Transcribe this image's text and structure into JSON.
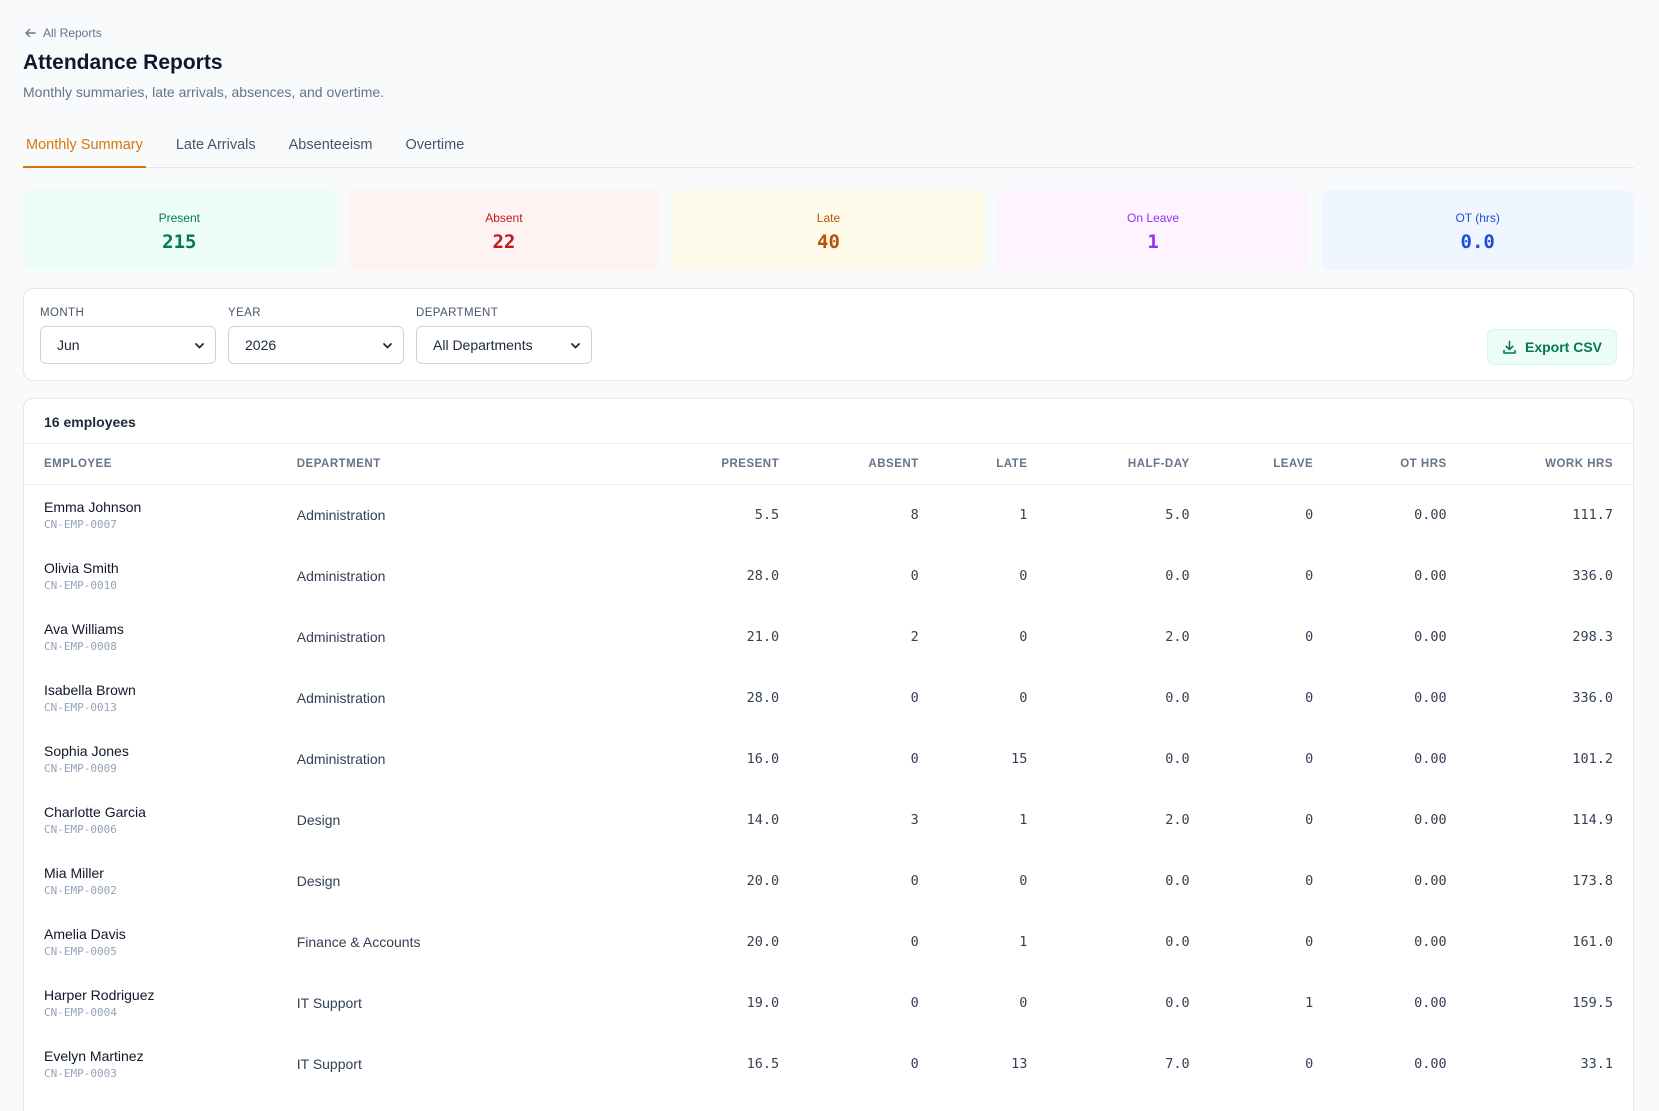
{
  "header": {
    "back_label": "All Reports",
    "title": "Attendance Reports",
    "subtitle": "Monthly summaries, late arrivals, absences, and overtime."
  },
  "tabs": [
    {
      "label": "Monthly Summary",
      "active": true
    },
    {
      "label": "Late Arrivals",
      "active": false
    },
    {
      "label": "Absenteeism",
      "active": false
    },
    {
      "label": "Overtime",
      "active": false
    }
  ],
  "stats": [
    {
      "label": "Present",
      "value": "215",
      "color": "#047857",
      "bg": "#ecfdf5"
    },
    {
      "label": "Absent",
      "value": "22",
      "color": "#b91c1c",
      "bg": "#fef2f2"
    },
    {
      "label": "Late",
      "value": "40",
      "color": "#b45309",
      "bg": "#fffbeb"
    },
    {
      "label": "On Leave",
      "value": "1",
      "color": "#9333ea",
      "bg": "#fdf4ff"
    },
    {
      "label": "OT (hrs)",
      "value": "0.0",
      "color": "#1d4ed8",
      "bg": "#eff6ff"
    }
  ],
  "filters": {
    "month": {
      "label": "Month",
      "value": "Jun"
    },
    "year": {
      "label": "Year",
      "value": "2026"
    },
    "department": {
      "label": "Department",
      "value": "All Departments"
    },
    "export_label": "Export CSV"
  },
  "table": {
    "count_label": "16 employees",
    "columns": [
      "Employee",
      "Department",
      "Present",
      "Absent",
      "Late",
      "Half-Day",
      "Leave",
      "OT Hrs",
      "Work Hrs"
    ],
    "rows": [
      {
        "name": "Emma Johnson",
        "code": "CN-EMP-0007",
        "dept": "Administration",
        "present": "5.5",
        "absent": "8",
        "late": "1",
        "half": "5.0",
        "leave": "0",
        "ot": "0.00",
        "work": "111.7"
      },
      {
        "name": "Olivia Smith",
        "code": "CN-EMP-0010",
        "dept": "Administration",
        "present": "28.0",
        "absent": "0",
        "late": "0",
        "half": "0.0",
        "leave": "0",
        "ot": "0.00",
        "work": "336.0"
      },
      {
        "name": "Ava Williams",
        "code": "CN-EMP-0008",
        "dept": "Administration",
        "present": "21.0",
        "absent": "2",
        "late": "0",
        "half": "2.0",
        "leave": "0",
        "ot": "0.00",
        "work": "298.3"
      },
      {
        "name": "Isabella Brown",
        "code": "CN-EMP-0013",
        "dept": "Administration",
        "present": "28.0",
        "absent": "0",
        "late": "0",
        "half": "0.0",
        "leave": "0",
        "ot": "0.00",
        "work": "336.0"
      },
      {
        "name": "Sophia Jones",
        "code": "CN-EMP-0009",
        "dept": "Administration",
        "present": "16.0",
        "absent": "0",
        "late": "15",
        "half": "0.0",
        "leave": "0",
        "ot": "0.00",
        "work": "101.2"
      },
      {
        "name": "Charlotte Garcia",
        "code": "CN-EMP-0006",
        "dept": "Design",
        "present": "14.0",
        "absent": "3",
        "late": "1",
        "half": "2.0",
        "leave": "0",
        "ot": "0.00",
        "work": "114.9"
      },
      {
        "name": "Mia Miller",
        "code": "CN-EMP-0002",
        "dept": "Design",
        "present": "20.0",
        "absent": "0",
        "late": "0",
        "half": "0.0",
        "leave": "0",
        "ot": "0.00",
        "work": "173.8"
      },
      {
        "name": "Amelia Davis",
        "code": "CN-EMP-0005",
        "dept": "Finance & Accounts",
        "present": "20.0",
        "absent": "0",
        "late": "1",
        "half": "0.0",
        "leave": "0",
        "ot": "0.00",
        "work": "161.0"
      },
      {
        "name": "Harper Rodriguez",
        "code": "CN-EMP-0004",
        "dept": "IT Support",
        "present": "19.0",
        "absent": "0",
        "late": "0",
        "half": "0.0",
        "leave": "1",
        "ot": "0.00",
        "work": "159.5"
      },
      {
        "name": "Evelyn Martinez",
        "code": "CN-EMP-0003",
        "dept": "IT Support",
        "present": "16.5",
        "absent": "0",
        "late": "13",
        "half": "7.0",
        "leave": "0",
        "ot": "0.00",
        "work": "33.1"
      }
    ]
  },
  "icons": {
    "back": "arrow-left-icon",
    "select": "chevron-down-icon",
    "export": "download-icon"
  }
}
